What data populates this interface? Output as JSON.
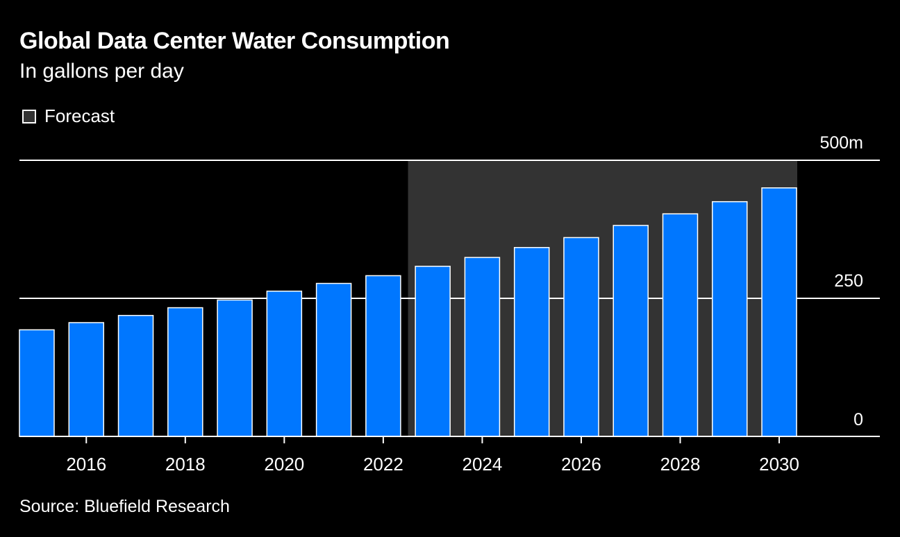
{
  "chart_data": {
    "type": "bar",
    "title": "Global Data Center Water Consumption",
    "subtitle": "In gallons per day",
    "legend": [
      {
        "label": "Forecast",
        "color": "#333333",
        "position": "top-left"
      }
    ],
    "source": "Source: Bluefield Research",
    "categories": [
      "2015",
      "2016",
      "2017",
      "2018",
      "2019",
      "2020",
      "2021",
      "2022",
      "2023",
      "2024",
      "2025",
      "2026",
      "2027",
      "2028",
      "2029",
      "2030"
    ],
    "values": [
      193,
      206,
      219,
      233,
      247,
      263,
      277,
      291,
      308,
      324,
      342,
      360,
      382,
      403,
      425,
      450
    ],
    "forecast_range": [
      "2023",
      "2030"
    ],
    "y_unit": "m",
    "ylim": [
      0,
      500
    ],
    "yticks": [
      {
        "value": 0,
        "label": "0"
      },
      {
        "value": 250,
        "label": "250"
      },
      {
        "value": 500,
        "label": "500m"
      }
    ],
    "xticks": [
      "2016",
      "2018",
      "2020",
      "2022",
      "2024",
      "2026",
      "2028",
      "2030"
    ],
    "xlabel": "",
    "ylabel": "",
    "bar_color": "#0077ff",
    "grid": true
  }
}
